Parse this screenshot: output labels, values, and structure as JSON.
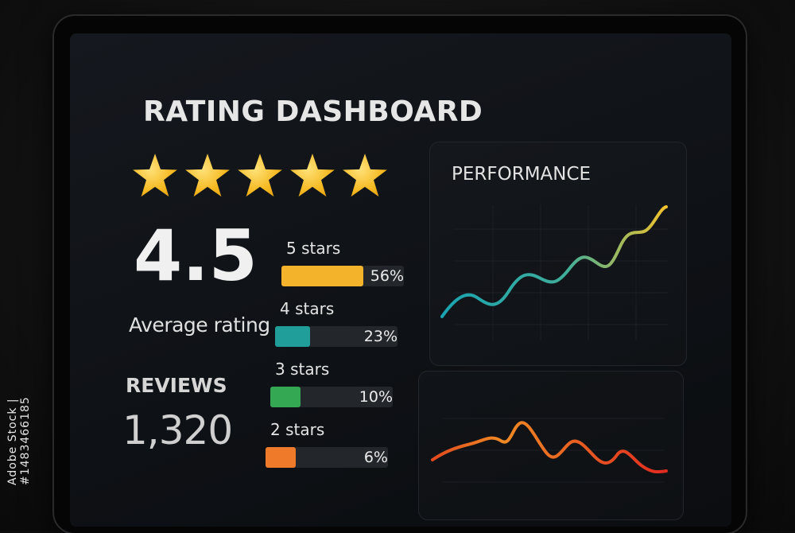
{
  "dashboard": {
    "title": "RATING DASHBOARD",
    "stars_filled": 5,
    "average": {
      "value": "4.5",
      "label": "Average rating"
    },
    "reviews": {
      "label": "REVIEWS",
      "value": "1,320"
    },
    "breakdown": [
      {
        "label": "5 stars",
        "percent_text": "56%",
        "percent": 56,
        "color": "#f3b32a"
      },
      {
        "label": "4 stars",
        "percent_text": "23%",
        "percent": 23,
        "color": "#1f9e9a"
      },
      {
        "label": "3 stars",
        "percent_text": "10%",
        "percent": 10,
        "color": "#34a853"
      },
      {
        "label": "2 stars",
        "percent_text": "6%",
        "percent": 6,
        "color": "#ee7a2a"
      }
    ],
    "performance": {
      "title": "PERFORMANCE"
    }
  },
  "watermark": "Adobe Stock | #1483466185",
  "colors": {
    "star": "#f5b820",
    "performance_line_start": "#1aa3b0",
    "performance_line_end": "#f2c22b",
    "secondary_line_start": "#f08a24",
    "secondary_line_end": "#e02a20"
  }
}
